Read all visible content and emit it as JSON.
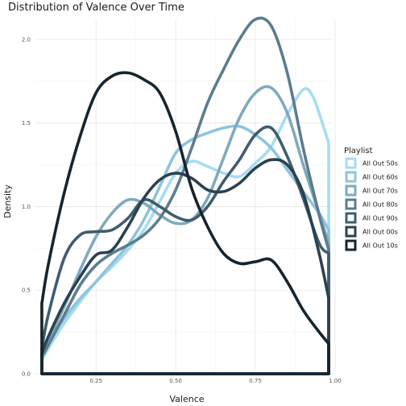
{
  "chart_data": {
    "type": "line",
    "subtype": "density",
    "title": "Distribution of Valence Over Time",
    "xlabel": "Valence",
    "ylabel": "Density",
    "xlim": [
      0.06,
      0.99
    ],
    "ylim": [
      0,
      2.12
    ],
    "x_ticks": [
      0.25,
      0.5,
      0.75,
      1.0
    ],
    "x_tick_labels": [
      "0.25",
      "0.50",
      "0.75",
      "1.00"
    ],
    "y_ticks": [
      0.0,
      0.5,
      1.0,
      1.5,
      2.0
    ],
    "y_tick_labels": [
      "0.0",
      "0.5",
      "1.0",
      "1.5",
      "2.0"
    ],
    "grid": true,
    "legend": {
      "title": "Playlist",
      "position": "right"
    },
    "series": [
      {
        "name": "All Out 50s",
        "color": "#a6dcf3",
        "x": [
          0.08,
          0.1,
          0.15,
          0.2,
          0.25,
          0.3,
          0.35,
          0.4,
          0.45,
          0.5,
          0.55,
          0.6,
          0.65,
          0.7,
          0.75,
          0.8,
          0.85,
          0.9,
          0.93,
          0.96,
          0.98
        ],
        "y": [
          0.08,
          0.15,
          0.3,
          0.43,
          0.55,
          0.64,
          0.74,
          0.86,
          1.03,
          1.2,
          1.27,
          1.24,
          1.2,
          1.18,
          1.26,
          1.36,
          1.55,
          1.7,
          1.66,
          1.5,
          1.38
        ]
      },
      {
        "name": "All Out 60s",
        "color": "#8ec4da",
        "x": [
          0.08,
          0.1,
          0.15,
          0.2,
          0.25,
          0.3,
          0.35,
          0.4,
          0.45,
          0.5,
          0.55,
          0.6,
          0.65,
          0.7,
          0.75,
          0.8,
          0.85,
          0.9,
          0.95,
          0.98
        ],
        "y": [
          0.1,
          0.18,
          0.33,
          0.45,
          0.55,
          0.66,
          0.77,
          0.92,
          1.12,
          1.32,
          1.4,
          1.44,
          1.47,
          1.48,
          1.43,
          1.35,
          1.22,
          1.09,
          0.96,
          0.86
        ]
      },
      {
        "name": "All Out 70s",
        "color": "#7eaabd",
        "x": [
          0.08,
          0.1,
          0.15,
          0.2,
          0.25,
          0.3,
          0.35,
          0.4,
          0.45,
          0.5,
          0.55,
          0.6,
          0.65,
          0.7,
          0.75,
          0.8,
          0.85,
          0.9,
          0.95,
          0.98
        ],
        "y": [
          0.12,
          0.2,
          0.4,
          0.62,
          0.82,
          0.96,
          1.04,
          1.02,
          0.95,
          0.9,
          0.92,
          1.05,
          1.29,
          1.53,
          1.68,
          1.71,
          1.56,
          1.25,
          0.96,
          0.78
        ]
      },
      {
        "name": "All Out 80s",
        "color": "#5b7d8e",
        "x": [
          0.08,
          0.1,
          0.15,
          0.2,
          0.25,
          0.3,
          0.35,
          0.4,
          0.45,
          0.5,
          0.55,
          0.6,
          0.65,
          0.7,
          0.75,
          0.8,
          0.85,
          0.9,
          0.95,
          0.98
        ],
        "y": [
          0.1,
          0.17,
          0.35,
          0.53,
          0.65,
          0.72,
          0.77,
          0.83,
          0.93,
          1.1,
          1.35,
          1.62,
          1.82,
          2.0,
          2.12,
          2.08,
          1.8,
          1.35,
          0.95,
          0.74
        ]
      },
      {
        "name": "All Out 90s",
        "color": "#3f5d6d",
        "x": [
          0.08,
          0.1,
          0.15,
          0.2,
          0.25,
          0.3,
          0.35,
          0.4,
          0.45,
          0.5,
          0.55,
          0.6,
          0.65,
          0.7,
          0.75,
          0.8,
          0.85,
          0.9,
          0.95,
          0.98
        ],
        "y": [
          0.15,
          0.35,
          0.69,
          0.83,
          0.85,
          0.86,
          0.93,
          1.04,
          1.0,
          0.94,
          0.92,
          1.0,
          1.15,
          1.28,
          1.43,
          1.47,
          1.3,
          1.05,
          0.78,
          0.72
        ]
      },
      {
        "name": "All Out 00s",
        "color": "#2b4150",
        "x": [
          0.08,
          0.1,
          0.15,
          0.2,
          0.25,
          0.3,
          0.35,
          0.4,
          0.45,
          0.5,
          0.55,
          0.6,
          0.65,
          0.7,
          0.75,
          0.8,
          0.85,
          0.9,
          0.95,
          0.98
        ],
        "y": [
          0.12,
          0.22,
          0.42,
          0.58,
          0.71,
          0.74,
          0.88,
          1.05,
          1.16,
          1.2,
          1.17,
          1.1,
          1.09,
          1.14,
          1.23,
          1.28,
          1.25,
          1.08,
          0.72,
          0.45
        ]
      },
      {
        "name": "All Out 10s",
        "color": "#16242d",
        "x": [
          0.08,
          0.1,
          0.15,
          0.2,
          0.25,
          0.3,
          0.35,
          0.4,
          0.45,
          0.5,
          0.55,
          0.6,
          0.65,
          0.7,
          0.75,
          0.8,
          0.85,
          0.9,
          0.95,
          0.98
        ],
        "y": [
          0.42,
          0.65,
          1.08,
          1.42,
          1.68,
          1.78,
          1.8,
          1.76,
          1.68,
          1.45,
          1.11,
          0.88,
          0.72,
          0.66,
          0.67,
          0.68,
          0.55,
          0.38,
          0.25,
          0.18
        ]
      }
    ]
  }
}
